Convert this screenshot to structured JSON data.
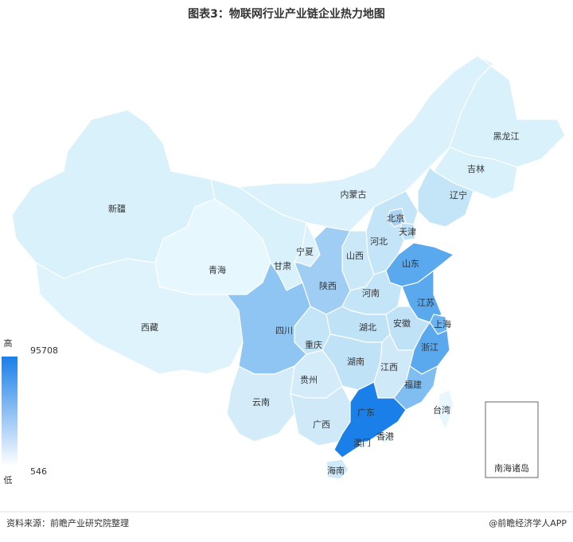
{
  "title": "图表3：物联网行业产业链企业热力地图",
  "legend": {
    "high": "高",
    "low": "低",
    "max": 95708,
    "min": 546
  },
  "regions": [
    {
      "name": "新疆",
      "color": "#d9f1fb"
    },
    {
      "name": "西藏",
      "color": "#dff3fc"
    },
    {
      "name": "青海",
      "color": "#e6f7fd"
    },
    {
      "name": "甘肃",
      "color": "#d9f1fb"
    },
    {
      "name": "内蒙古",
      "color": "#dbf1fb"
    },
    {
      "name": "黑龙江",
      "color": "#d9f1fb"
    },
    {
      "name": "吉林",
      "color": "#d9f1fb"
    },
    {
      "name": "辽宁",
      "color": "#c4e4f8"
    },
    {
      "name": "北京",
      "color": "#a9d4f5"
    },
    {
      "name": "天津",
      "color": "#bfe1f7"
    },
    {
      "name": "河北",
      "color": "#c4e4f8"
    },
    {
      "name": "山西",
      "color": "#cbe8f9"
    },
    {
      "name": "宁夏",
      "color": "#dbf1fb"
    },
    {
      "name": "陕西",
      "color": "#9fcdf3"
    },
    {
      "name": "山东",
      "color": "#5aa8ee"
    },
    {
      "name": "河南",
      "color": "#c4e4f8"
    },
    {
      "name": "江苏",
      "color": "#5aa8ee"
    },
    {
      "name": "安徽",
      "color": "#c0e2f7"
    },
    {
      "name": "上海",
      "color": "#6ab2f0"
    },
    {
      "name": "湖北",
      "color": "#c0e2f7"
    },
    {
      "name": "重庆",
      "color": "#c4e4f8"
    },
    {
      "name": "四川",
      "color": "#8ec5f2"
    },
    {
      "name": "浙江",
      "color": "#5aa8ee"
    },
    {
      "name": "湖南",
      "color": "#c0e2f7"
    },
    {
      "name": "江西",
      "color": "#cfe9f9"
    },
    {
      "name": "贵州",
      "color": "#d4ecfa"
    },
    {
      "name": "福建",
      "color": "#80bdf1"
    },
    {
      "name": "云南",
      "color": "#d4ecfa"
    },
    {
      "name": "广西",
      "color": "#cfe9f9"
    },
    {
      "name": "广东",
      "color": "#1a7fe8"
    },
    {
      "name": "香港",
      "color": "#d9f1fb"
    },
    {
      "name": "澳门",
      "color": "#d9f1fb"
    },
    {
      "name": "海南",
      "color": "#cfe9f9"
    },
    {
      "name": "台湾",
      "color": "#e8f7fd"
    },
    {
      "name": "南海诸岛",
      "color": "#ffffff"
    }
  ],
  "footer": {
    "source": "资料来源：前瞻产业研究院整理",
    "brand": "@前瞻经济学人APP"
  }
}
